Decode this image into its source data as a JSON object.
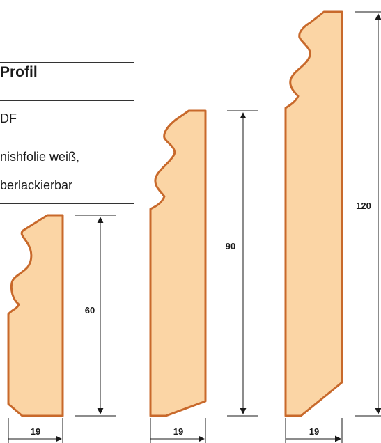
{
  "info": {
    "title": "Profil",
    "material": "DF",
    "finish_line1": "nishfolie weiß,",
    "finish_line2": "berlackierbar"
  },
  "colors": {
    "fill": "#FBD5A5",
    "outline": "#C8692B",
    "dimension": "#1a1a1a"
  },
  "profiles": [
    {
      "height": "60",
      "width": "19"
    },
    {
      "height": "90",
      "width": "19"
    },
    {
      "height": "120",
      "width": "19"
    }
  ]
}
